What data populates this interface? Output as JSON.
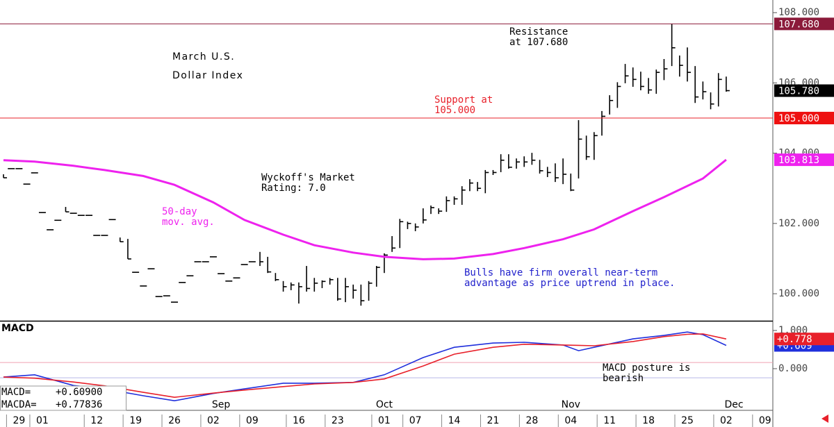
{
  "chart_data": [
    {
      "type": "ohlc",
      "title": [
        "March U.S.",
        "Dollar Index"
      ],
      "x": [
        -2,
        -1,
        0,
        1,
        2,
        3,
        4,
        5,
        6,
        7,
        8,
        9,
        10,
        11,
        12,
        13,
        14,
        15,
        16,
        17,
        18,
        19,
        20,
        21,
        22,
        23,
        24,
        25,
        26,
        27,
        28,
        29,
        30,
        31,
        32,
        33,
        34,
        35,
        36,
        37,
        38,
        39,
        40,
        41,
        42,
        43,
        44,
        45,
        46,
        47,
        48,
        49,
        50,
        51,
        52,
        53,
        54,
        55,
        56,
        57,
        58,
        59,
        60,
        61,
        62,
        63,
        64,
        65,
        66,
        67,
        68,
        69,
        70,
        71,
        72,
        73,
        74,
        75,
        76,
        77,
        78,
        79,
        80,
        81,
        82,
        83,
        84,
        85,
        86,
        87,
        88,
        89,
        90,
        91
      ],
      "high": [
        103.4,
        103.56,
        103.56,
        103.12,
        103.44,
        102.31,
        101.82,
        102.09,
        102.47,
        102.29,
        102.23,
        102.23,
        101.66,
        101.66,
        102.11,
        101.6,
        101.56,
        100.61,
        100.22,
        100.71,
        99.92,
        99.94,
        99.76,
        100.32,
        100.51,
        100.91,
        100.91,
        101.05,
        100.57,
        100.36,
        100.45,
        100.83,
        100.91,
        101.19,
        101.05,
        100.59,
        100.36,
        100.32,
        100.32,
        100.79,
        100.45,
        100.38,
        100.45,
        100.45,
        100.45,
        100.26,
        100.26,
        100.36,
        100.79,
        101.15,
        101.64,
        102.13,
        102.05,
        102.0,
        102.43,
        102.51,
        102.43,
        102.77,
        102.77,
        103.06,
        103.26,
        103.18,
        103.52,
        103.52,
        103.97,
        103.97,
        103.85,
        103.91,
        104.01,
        103.81,
        103.61,
        103.71,
        103.85,
        103.42,
        104.94,
        104.5,
        104.6,
        105.2,
        105.65,
        106.02,
        106.54,
        106.44,
        106.32,
        106.14,
        106.38,
        106.68,
        107.68,
        106.78,
        107.01,
        106.48,
        106.04,
        105.73,
        106.28,
        106.18
      ],
      "low": [
        103.3,
        103.56,
        103.56,
        103.12,
        103.44,
        102.31,
        101.82,
        102.09,
        102.33,
        102.29,
        102.23,
        102.23,
        101.66,
        101.66,
        102.11,
        101.48,
        100.99,
        100.61,
        100.22,
        100.71,
        99.92,
        99.94,
        99.76,
        100.32,
        100.51,
        100.91,
        100.91,
        101.05,
        100.57,
        100.36,
        100.45,
        100.83,
        100.91,
        100.79,
        100.59,
        100.36,
        100.06,
        100.1,
        99.72,
        100.06,
        100.06,
        100.16,
        100.26,
        99.8,
        99.76,
        99.86,
        99.66,
        99.8,
        100.2,
        100.59,
        101.19,
        101.3,
        101.84,
        101.78,
        102.0,
        102.27,
        102.27,
        102.33,
        102.53,
        102.53,
        102.92,
        102.92,
        102.86,
        103.38,
        103.46,
        103.56,
        103.56,
        103.61,
        103.67,
        103.42,
        103.32,
        103.18,
        103.12,
        102.92,
        103.28,
        103.81,
        103.81,
        104.5,
        105.1,
        105.29,
        105.99,
        105.89,
        105.79,
        105.69,
        105.69,
        106.08,
        106.48,
        106.18,
        106.04,
        105.43,
        105.53,
        105.25,
        105.33,
        105.75
      ],
      "close": [
        103.3,
        103.56,
        103.56,
        103.12,
        103.44,
        102.31,
        101.82,
        102.09,
        102.33,
        102.29,
        102.23,
        102.23,
        101.66,
        101.66,
        102.11,
        101.48,
        100.99,
        100.61,
        100.22,
        100.71,
        99.92,
        99.94,
        99.76,
        100.32,
        100.51,
        100.91,
        100.91,
        101.05,
        100.57,
        100.36,
        100.45,
        100.83,
        100.91,
        100.91,
        100.62,
        100.4,
        100.2,
        100.25,
        100.2,
        100.15,
        100.3,
        100.35,
        100.4,
        99.85,
        100.2,
        100.1,
        99.8,
        100.3,
        100.75,
        101.1,
        101.3,
        102.05,
        102.0,
        101.9,
        102.1,
        102.45,
        102.35,
        102.65,
        102.7,
        102.95,
        103.15,
        103.0,
        103.45,
        103.45,
        103.8,
        103.6,
        103.75,
        103.75,
        103.8,
        103.5,
        103.45,
        103.3,
        103.4,
        102.95,
        104.4,
        103.9,
        104.5,
        105.05,
        105.5,
        105.9,
        106.2,
        106.1,
        105.9,
        105.8,
        106.3,
        106.4,
        107.0,
        106.5,
        106.3,
        105.6,
        105.75,
        105.4,
        106.1,
        105.78
      ],
      "color": "#000000",
      "xlim": [
        -2.45,
        97
      ],
      "ylim": [
        99.23,
        108.36
      ],
      "yticks": [
        {
          "value": 100,
          "label": "100.000"
        },
        {
          "value": 102,
          "label": "102.000"
        },
        {
          "value": 104,
          "label": "104.000"
        },
        {
          "value": 106,
          "label": "106.000"
        },
        {
          "value": 108,
          "label": "108.000"
        }
      ],
      "moving_average": {
        "color": "#ee22ee",
        "x": [
          -2,
          2,
          7,
          11,
          16,
          20,
          25,
          29,
          34,
          38,
          43,
          47,
          52,
          56,
          61,
          65,
          70,
          74,
          79,
          83,
          88,
          91
        ],
        "values": [
          103.8,
          103.76,
          103.64,
          103.52,
          103.35,
          103.1,
          102.6,
          102.1,
          101.68,
          101.38,
          101.17,
          101.05,
          100.98,
          101.0,
          101.13,
          101.3,
          101.55,
          101.83,
          102.35,
          102.75,
          103.28,
          103.813
        ]
      },
      "hlines": [
        {
          "value": 107.68,
          "color": "#8b1a3a"
        },
        {
          "value": 105,
          "color": "#e8202a"
        }
      ],
      "price_labels": [
        {
          "value": 107.68,
          "label": "107.680",
          "color": "#8b1a3a"
        },
        {
          "value": 105.78,
          "label": "105.780",
          "color": "#000000"
        },
        {
          "value": 105,
          "label": "105.000",
          "color": "#ee1111"
        },
        {
          "value": 103.813,
          "label": "103.813",
          "color": "#ee22ee"
        }
      ],
      "annotations": [
        {
          "text": [
            "Resistance",
            "at 107.680"
          ],
          "color": "#000000"
        },
        {
          "text": [
            "Support at",
            "105.000"
          ],
          "color": "#e8202a"
        },
        {
          "text": [
            "Wyckoff's Market",
            "Rating: 7.0"
          ],
          "color": "#000000"
        },
        {
          "text": [
            "50-day",
            "mov. avg."
          ],
          "color": "#ee22ee"
        },
        {
          "text": [
            "Bulls have firm overall near-term",
            "advantage as price uptrend in place."
          ],
          "color": "#2222cc"
        }
      ]
    },
    {
      "type": "line",
      "title": "MACD",
      "x": [
        -2,
        2,
        7,
        11,
        16,
        20,
        25,
        29,
        34,
        38,
        43,
        47,
        52,
        56,
        61,
        65,
        70,
        72,
        74,
        79,
        83,
        86,
        88,
        91
      ],
      "series": [
        {
          "name": "MACD",
          "color": "#1f2fdc",
          "values": [
            -0.22,
            -0.16,
            -0.44,
            -0.53,
            -0.71,
            -0.84,
            -0.65,
            -0.53,
            -0.38,
            -0.38,
            -0.36,
            -0.16,
            0.29,
            0.56,
            0.67,
            0.69,
            0.62,
            0.47,
            0.56,
            0.78,
            0.87,
            0.96,
            0.89,
            0.609
          ],
          "value_label": "+0.609"
        },
        {
          "name": "MACDA",
          "color": "#e8202a",
          "values": [
            -0.22,
            -0.25,
            -0.35,
            -0.45,
            -0.62,
            -0.75,
            -0.64,
            -0.56,
            -0.47,
            -0.4,
            -0.36,
            -0.27,
            0.07,
            0.38,
            0.56,
            0.64,
            0.62,
            0.61,
            0.6,
            0.71,
            0.84,
            0.9,
            0.91,
            0.778
          ],
          "value_label": "+0.778"
        }
      ],
      "readout": [
        {
          "label": "MACD=",
          "value": "+0.60900"
        },
        {
          "label": "MACDA=",
          "value": "+0.77836"
        }
      ],
      "levels": [
        {
          "value": 0.16,
          "color": "#f0a0b0"
        },
        {
          "value": -0.24,
          "color": "#b8b8e8"
        }
      ],
      "xlim": [
        -2.45,
        97
      ],
      "ylim": [
        -1.073,
        1.236
      ],
      "yticks": [
        {
          "value": 0,
          "label": "0.000"
        },
        {
          "value": 1,
          "label": "1.000"
        }
      ],
      "xticks": [
        {
          "value": 0,
          "label": "29"
        },
        {
          "value": 3,
          "label": "01"
        },
        {
          "value": 10,
          "label": "12"
        },
        {
          "value": 15,
          "label": "19"
        },
        {
          "value": 20,
          "label": "26"
        },
        {
          "value": 25,
          "label": "02"
        },
        {
          "value": 30,
          "label": "09"
        },
        {
          "value": 36,
          "label": "16"
        },
        {
          "value": 41,
          "label": "23"
        },
        {
          "value": 47,
          "label": "01"
        },
        {
          "value": 51,
          "label": "07"
        },
        {
          "value": 56,
          "label": "14"
        },
        {
          "value": 61,
          "label": "21"
        },
        {
          "value": 66,
          "label": "28"
        },
        {
          "value": 71,
          "label": "04"
        },
        {
          "value": 76,
          "label": "11"
        },
        {
          "value": 81,
          "label": "18"
        },
        {
          "value": 86,
          "label": "25"
        },
        {
          "value": 91,
          "label": "02"
        },
        {
          "value": 96,
          "label": "09"
        }
      ],
      "months": [
        {
          "value": 26,
          "label": "Sep"
        },
        {
          "value": 47,
          "label": "Oct"
        },
        {
          "value": 71,
          "label": "Nov"
        },
        {
          "value": 92,
          "label": "Dec"
        }
      ],
      "annotations": [
        {
          "text": [
            "MACD posture is",
            "bearish"
          ],
          "color": "#000000"
        }
      ]
    }
  ]
}
